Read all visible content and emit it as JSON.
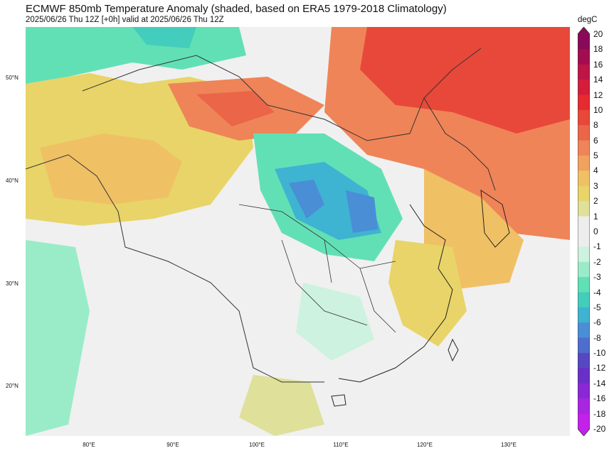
{
  "header": {
    "title": "ECMWF 850mb Temperature Anomaly (shaded, based on ERA5 1979-2018 Climatology)",
    "subtitle": "2025/06/26 Thu 12Z [+0h] valid at 2025/06/26 Thu 12Z"
  },
  "colorbar": {
    "unit": "degC",
    "levels": [
      "20",
      "18",
      "16",
      "14",
      "12",
      "10",
      "8",
      "6",
      "5",
      "4",
      "3",
      "2",
      "1",
      "0",
      "-1",
      "-2",
      "-3",
      "-4",
      "-5",
      "-6",
      "-8",
      "-10",
      "-12",
      "-14",
      "-16",
      "-18",
      "-20"
    ],
    "colors": [
      "#8a0a5a",
      "#a30d50",
      "#bd1545",
      "#d41d3a",
      "#e52a30",
      "#e8483a",
      "#eb6548",
      "#ef8458",
      "#f1a25e",
      "#f0c065",
      "#e8d468",
      "#dfe09a",
      "#ededed",
      "#ededed",
      "#cdf2e0",
      "#9aecc8",
      "#62e0b5",
      "#43cdbc",
      "#3fb3d2",
      "#4a8ed6",
      "#4f6dcc",
      "#5548c2",
      "#6a2fc8",
      "#8a28d5",
      "#a826df",
      "#c320ea"
    ]
  },
  "axes": {
    "lat_labels": [
      {
        "text": "50°N",
        "lat": 50
      },
      {
        "text": "40°N",
        "lat": 40
      },
      {
        "text": "30°N",
        "lat": 30
      },
      {
        "text": "20°N",
        "lat": 20
      }
    ],
    "lon_labels": [
      {
        "text": "80°E",
        "lon": 80
      },
      {
        "text": "90°E",
        "lon": 90
      },
      {
        "text": "100°E",
        "lon": 100
      },
      {
        "text": "110°E",
        "lon": 110
      },
      {
        "text": "120°E",
        "lon": 120
      },
      {
        "text": "130°E",
        "lon": 130
      }
    ]
  }
}
